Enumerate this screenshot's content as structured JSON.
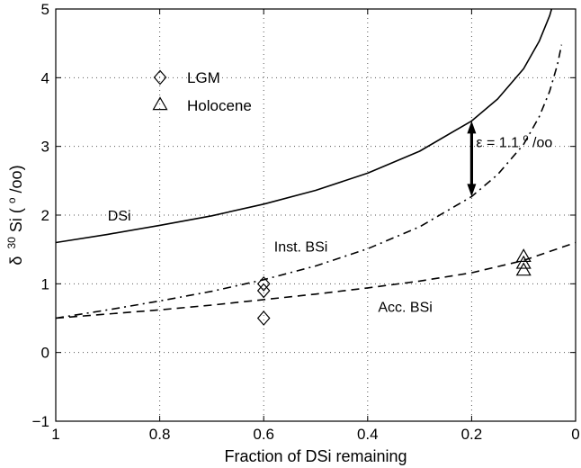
{
  "chart_data": {
    "type": "line",
    "title": "",
    "xlabel": "Fraction of DSi remaining",
    "ylabel_main": "δ",
    "ylabel_sup": "30",
    "ylabel_rest": "Si (",
    "ylabel_unit_sup": "o",
    "ylabel_unit_rest": "/oo)",
    "xlim": [
      1,
      0
    ],
    "ylim": [
      -1,
      5
    ],
    "x_reversed": true,
    "grid": true,
    "x_ticks": [
      1,
      0.8,
      0.6,
      0.4,
      0.2,
      0
    ],
    "x_tick_labels": [
      "1",
      "0.8",
      "0.6",
      "0.4",
      "0.2",
      "0"
    ],
    "y_ticks": [
      -1,
      0,
      1,
      2,
      3,
      4,
      5
    ],
    "y_tick_labels": [
      "−1",
      "0",
      "1",
      "2",
      "3",
      "4",
      "5"
    ],
    "series": [
      {
        "name": "DSi",
        "style": "solid",
        "x": [
          1,
          0.9,
          0.8,
          0.7,
          0.6,
          0.5,
          0.4,
          0.3,
          0.2,
          0.15,
          0.1,
          0.07,
          0.05,
          0.035,
          0.027
        ],
        "y": [
          1.6,
          1.72,
          1.85,
          1.99,
          2.16,
          2.36,
          2.61,
          2.93,
          3.37,
          3.69,
          4.13,
          4.53,
          4.9,
          5.29,
          5.58
        ]
      },
      {
        "name": "Inst. BSi",
        "style": "dashdot",
        "x": [
          1,
          0.9,
          0.8,
          0.7,
          0.6,
          0.5,
          0.4,
          0.3,
          0.2,
          0.15,
          0.1,
          0.07,
          0.05,
          0.035,
          0.027
        ],
        "y": [
          0.5,
          0.62,
          0.75,
          0.89,
          1.06,
          1.26,
          1.51,
          1.83,
          2.27,
          2.59,
          3.03,
          3.43,
          3.8,
          4.19,
          4.48
        ]
      },
      {
        "name": "Acc. BSi",
        "style": "dashed",
        "x": [
          1,
          0.9,
          0.8,
          0.7,
          0.6,
          0.5,
          0.4,
          0.3,
          0.2,
          0.1,
          0
        ],
        "y": [
          0.5,
          0.56,
          0.62,
          0.69,
          0.77,
          0.85,
          0.94,
          1.04,
          1.16,
          1.34,
          1.6
        ]
      }
    ],
    "points": [
      {
        "name": "LGM",
        "marker": "diamond",
        "x": [
          0.6,
          0.6,
          0.6
        ],
        "y": [
          1.0,
          0.9,
          0.5
        ]
      },
      {
        "name": "Holocene",
        "marker": "triangle",
        "x": [
          0.1,
          0.1,
          0.1
        ],
        "y": [
          1.4,
          1.3,
          1.2
        ]
      }
    ],
    "legend": {
      "placement": "upper-left",
      "entries": [
        {
          "label": "LGM",
          "marker": "diamond"
        },
        {
          "label": "Holocene",
          "marker": "triangle"
        }
      ]
    },
    "curve_labels": [
      {
        "text": "DSi",
        "x": 0.9,
        "y": 2.0
      },
      {
        "text": "Inst. BSi",
        "x": 0.58,
        "y": 1.55
      },
      {
        "text": "Acc. BSi",
        "x": 0.38,
        "y": 0.67
      }
    ],
    "annotation": {
      "text": "ε = 1.1‰",
      "display_text": "ε = 1.1",
      "display_unit_sup": "o",
      "display_unit_rest": "/oo",
      "arrow_x": 0.2,
      "arrow_y_from": 2.27,
      "arrow_y_to": 3.37,
      "text_y": 3.07
    }
  }
}
